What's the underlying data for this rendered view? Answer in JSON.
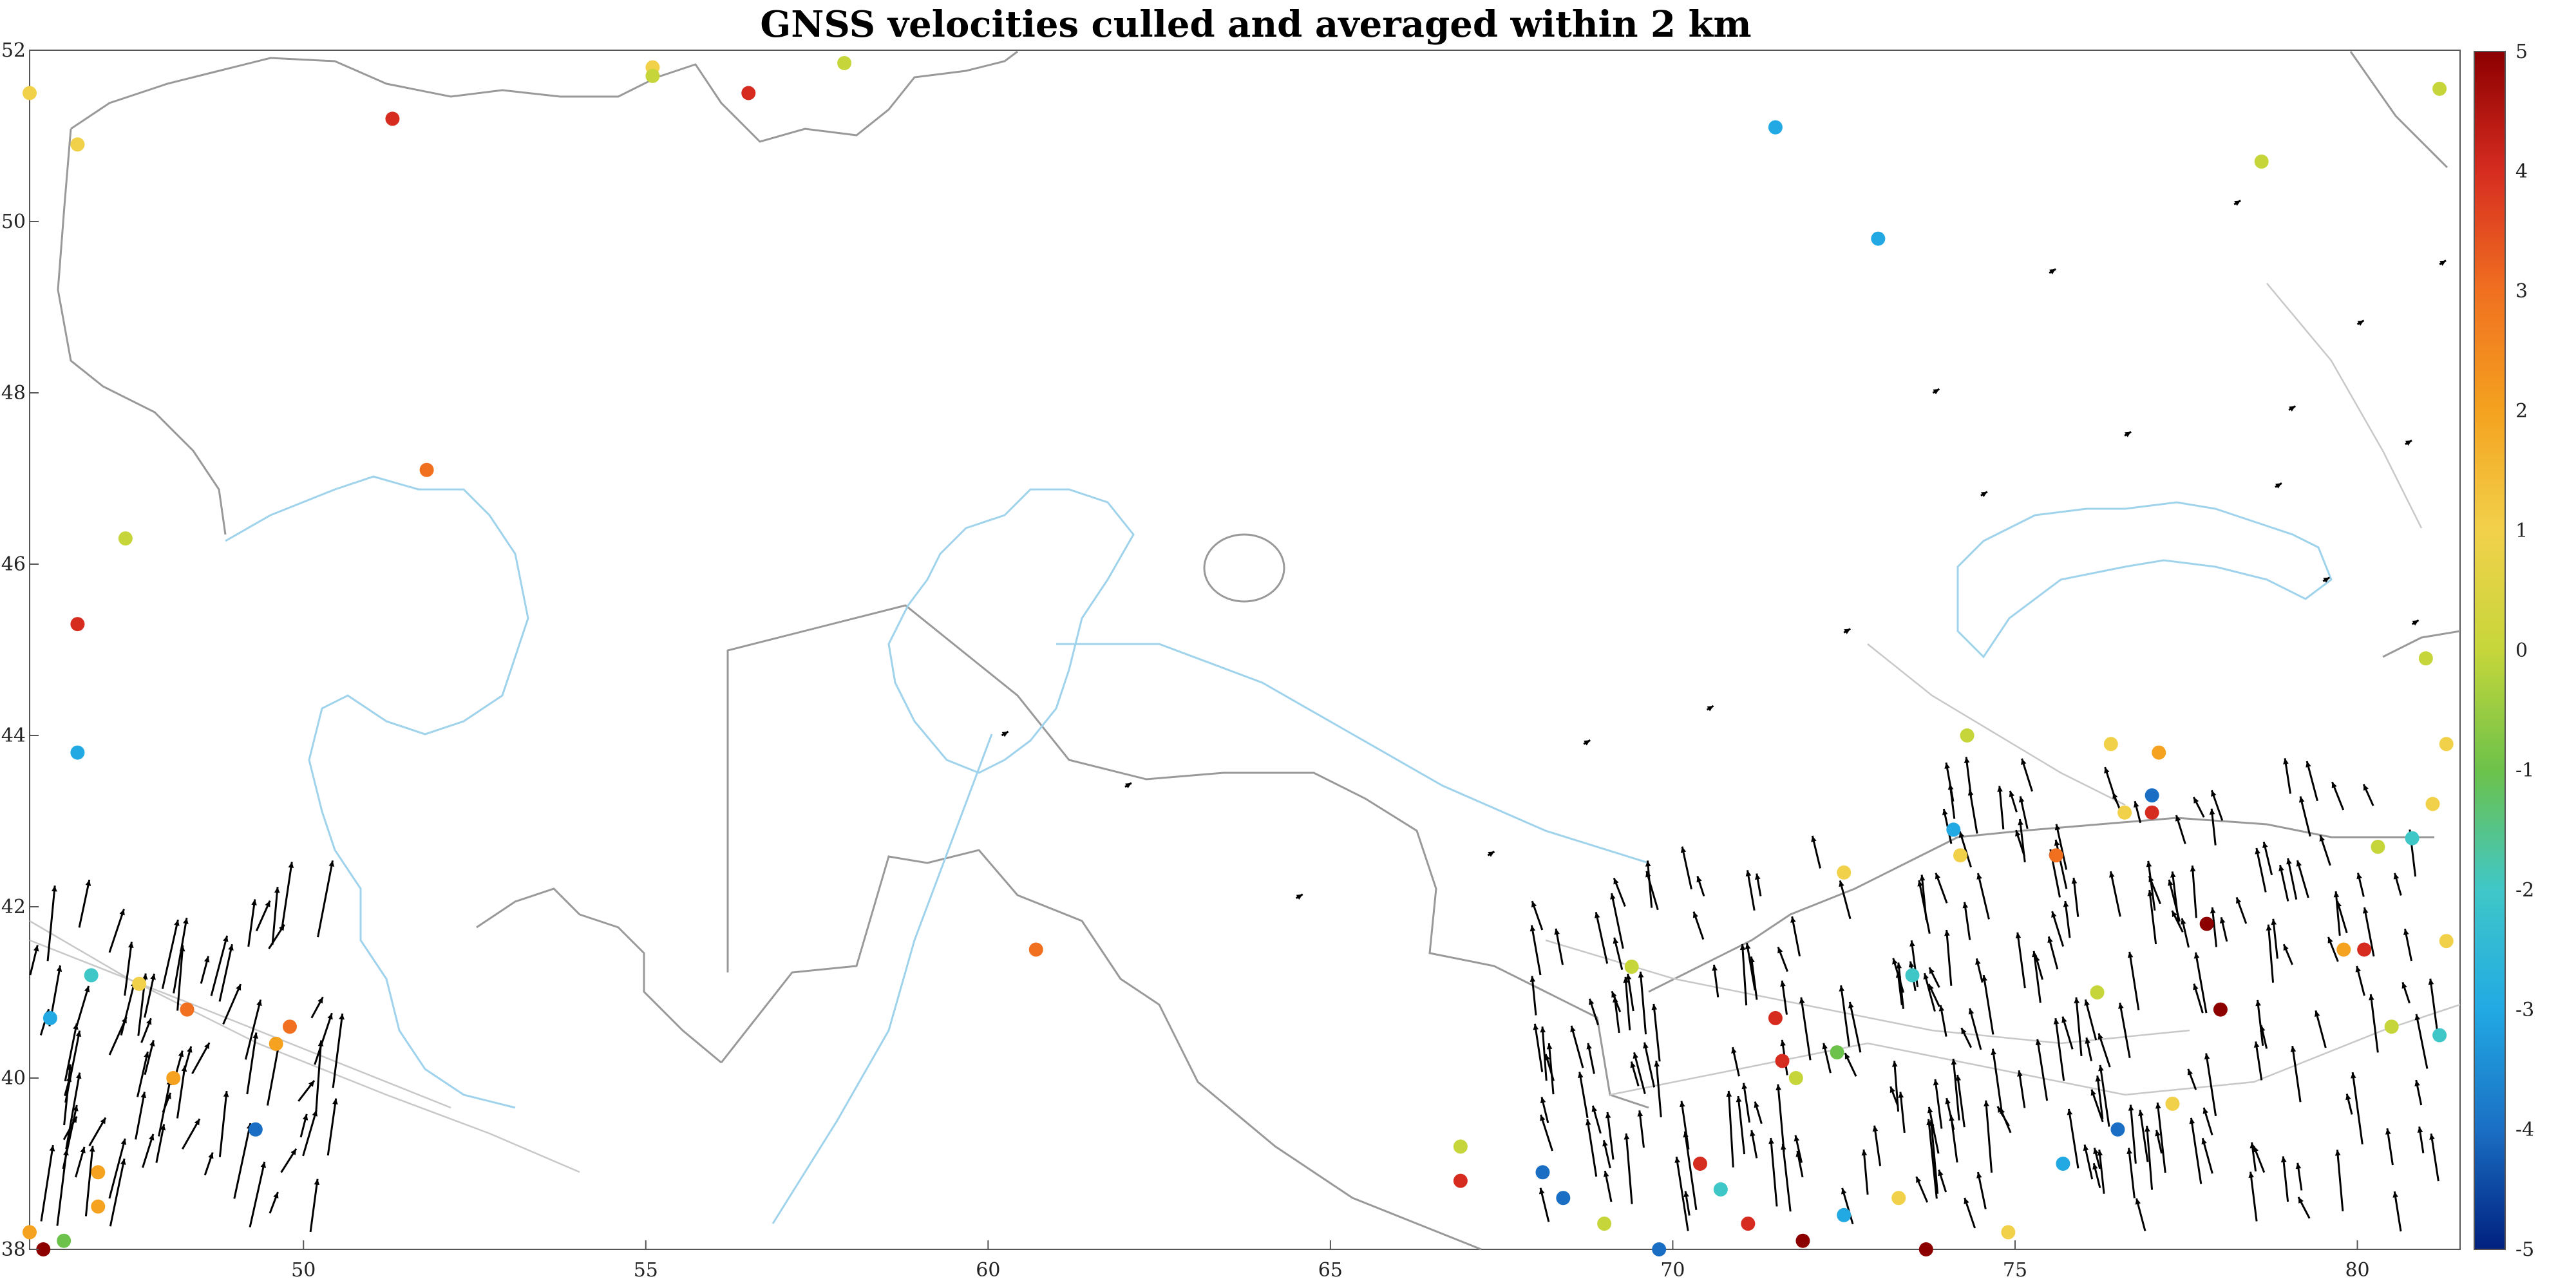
{
  "chart_data": {
    "type": "scatter",
    "title": "GNSS velocities culled and averaged within 2 km",
    "xlabel": "",
    "ylabel": "",
    "xlim": [
      46,
      81.5
    ],
    "ylim": [
      38,
      52
    ],
    "x_ticks": [
      50,
      55,
      60,
      65,
      70,
      75,
      80
    ],
    "y_ticks": [
      38,
      40,
      42,
      44,
      46,
      48,
      50,
      52
    ],
    "grid": false,
    "colorbar": {
      "position": "right",
      "range": [
        -5,
        5
      ],
      "ticks": [
        5,
        4,
        3,
        2,
        1,
        0,
        -1,
        -2,
        -3,
        -4,
        -5
      ],
      "colormap": [
        "#00207f",
        "#1a6fc4",
        "#22a9e3",
        "#3fc7c8",
        "#6cc24a",
        "#c6d63a",
        "#f2d14a",
        "#f4a21f",
        "#f07020",
        "#d62c20",
        "#8c0000"
      ]
    },
    "stations": [
      {
        "x": 46.0,
        "y": 51.5,
        "value": 1.2
      },
      {
        "x": 46.7,
        "y": 50.9,
        "value": 1.2
      },
      {
        "x": 51.3,
        "y": 51.2,
        "value": 3.5
      },
      {
        "x": 55.1,
        "y": 51.8,
        "value": 1.0
      },
      {
        "x": 55.1,
        "y": 51.7,
        "value": 0.2
      },
      {
        "x": 56.5,
        "y": 51.5,
        "value": 3.5
      },
      {
        "x": 57.9,
        "y": 51.85,
        "value": 0.3
      },
      {
        "x": 71.5,
        "y": 51.1,
        "value": -3.0
      },
      {
        "x": 73.0,
        "y": 49.8,
        "value": -2.8
      },
      {
        "x": 78.6,
        "y": 50.7,
        "value": 0.2
      },
      {
        "x": 81.2,
        "y": 51.55,
        "value": 0.3
      },
      {
        "x": 51.8,
        "y": 47.1,
        "value": 3.4
      },
      {
        "x": 47.4,
        "y": 46.3,
        "value": 0.0
      },
      {
        "x": 46.7,
        "y": 45.3,
        "value": 3.5
      },
      {
        "x": 46.7,
        "y": 43.8,
        "value": -3.5
      },
      {
        "x": 60.7,
        "y": 41.5,
        "value": 3.0
      },
      {
        "x": 66.9,
        "y": 39.2,
        "value": 0.2
      },
      {
        "x": 66.9,
        "y": 38.8,
        "value": 3.8
      },
      {
        "x": 69.8,
        "y": 38.0,
        "value": -4.0
      },
      {
        "x": 70.4,
        "y": 39.0,
        "value": 4.2
      },
      {
        "x": 70.7,
        "y": 38.7,
        "value": -2.0
      },
      {
        "x": 71.1,
        "y": 38.3,
        "value": 4.2
      },
      {
        "x": 71.9,
        "y": 38.1,
        "value": 4.5
      },
      {
        "x": 72.5,
        "y": 38.4,
        "value": -3.5
      },
      {
        "x": 73.3,
        "y": 38.6,
        "value": 1.0
      },
      {
        "x": 73.7,
        "y": 38.0,
        "value": 4.5
      },
      {
        "x": 74.9,
        "y": 38.2,
        "value": 1.2
      },
      {
        "x": 75.7,
        "y": 39.0,
        "value": -3.0
      },
      {
        "x": 76.5,
        "y": 39.4,
        "value": -3.8
      },
      {
        "x": 77.3,
        "y": 39.7,
        "value": 1.0
      },
      {
        "x": 78.0,
        "y": 40.8,
        "value": 4.5
      },
      {
        "x": 77.8,
        "y": 41.8,
        "value": 4.5
      },
      {
        "x": 76.2,
        "y": 41.0,
        "value": 0.0
      },
      {
        "x": 79.8,
        "y": 41.5,
        "value": 1.5
      },
      {
        "x": 80.1,
        "y": 41.5,
        "value": 3.5
      },
      {
        "x": 80.5,
        "y": 40.6,
        "value": 0.4
      },
      {
        "x": 81.2,
        "y": 40.5,
        "value": -2.0
      },
      {
        "x": 81.3,
        "y": 41.6,
        "value": 1.2
      },
      {
        "x": 80.3,
        "y": 42.7,
        "value": 0.2
      },
      {
        "x": 80.8,
        "y": 42.8,
        "value": -2.5
      },
      {
        "x": 81.1,
        "y": 43.2,
        "value": 1.2
      },
      {
        "x": 81.3,
        "y": 43.9,
        "value": 0.5
      },
      {
        "x": 81.0,
        "y": 44.9,
        "value": 0.0
      },
      {
        "x": 76.4,
        "y": 43.9,
        "value": 1.3
      },
      {
        "x": 77.1,
        "y": 43.8,
        "value": 2.0
      },
      {
        "x": 77.0,
        "y": 43.3,
        "value": -4.0
      },
      {
        "x": 77.0,
        "y": 43.1,
        "value": 4.2
      },
      {
        "x": 76.6,
        "y": 43.1,
        "value": 1.2
      },
      {
        "x": 75.6,
        "y": 42.6,
        "value": 3.0
      },
      {
        "x": 74.1,
        "y": 42.9,
        "value": -3.0
      },
      {
        "x": 74.2,
        "y": 42.6,
        "value": 0.5
      },
      {
        "x": 74.3,
        "y": 44.0,
        "value": 0.2
      },
      {
        "x": 72.5,
        "y": 42.4,
        "value": 1.0
      },
      {
        "x": 73.5,
        "y": 41.2,
        "value": -2.5
      },
      {
        "x": 69.4,
        "y": 41.3,
        "value": 0.3
      },
      {
        "x": 71.5,
        "y": 40.7,
        "value": 4.2
      },
      {
        "x": 71.6,
        "y": 40.2,
        "value": 4.2
      },
      {
        "x": 71.8,
        "y": 40.0,
        "value": 0.2
      },
      {
        "x": 72.4,
        "y": 40.3,
        "value": -1.0
      },
      {
        "x": 68.4,
        "y": 38.6,
        "value": -4.0
      },
      {
        "x": 68.1,
        "y": 38.9,
        "value": -4.0
      },
      {
        "x": 69.0,
        "y": 38.3,
        "value": 0.3
      },
      {
        "x": 46.0,
        "y": 38.2,
        "value": 2.0
      },
      {
        "x": 46.2,
        "y": 38.0,
        "value": 4.5
      },
      {
        "x": 46.5,
        "y": 38.1,
        "value": -1.0
      },
      {
        "x": 47.0,
        "y": 38.5,
        "value": 1.8
      },
      {
        "x": 47.0,
        "y": 38.9,
        "value": 1.5
      },
      {
        "x": 46.3,
        "y": 40.7,
        "value": -3.2
      },
      {
        "x": 46.9,
        "y": 41.2,
        "value": -2.3
      },
      {
        "x": 47.6,
        "y": 41.1,
        "value": 1.2
      },
      {
        "x": 48.3,
        "y": 40.8,
        "value": 2.5
      },
      {
        "x": 48.1,
        "y": 40.0,
        "value": 2.2
      },
      {
        "x": 49.3,
        "y": 39.4,
        "value": -4.0
      },
      {
        "x": 49.6,
        "y": 40.4,
        "value": 2.3
      },
      {
        "x": 49.8,
        "y": 40.6,
        "value": 2.5
      }
    ],
    "annotations": []
  }
}
